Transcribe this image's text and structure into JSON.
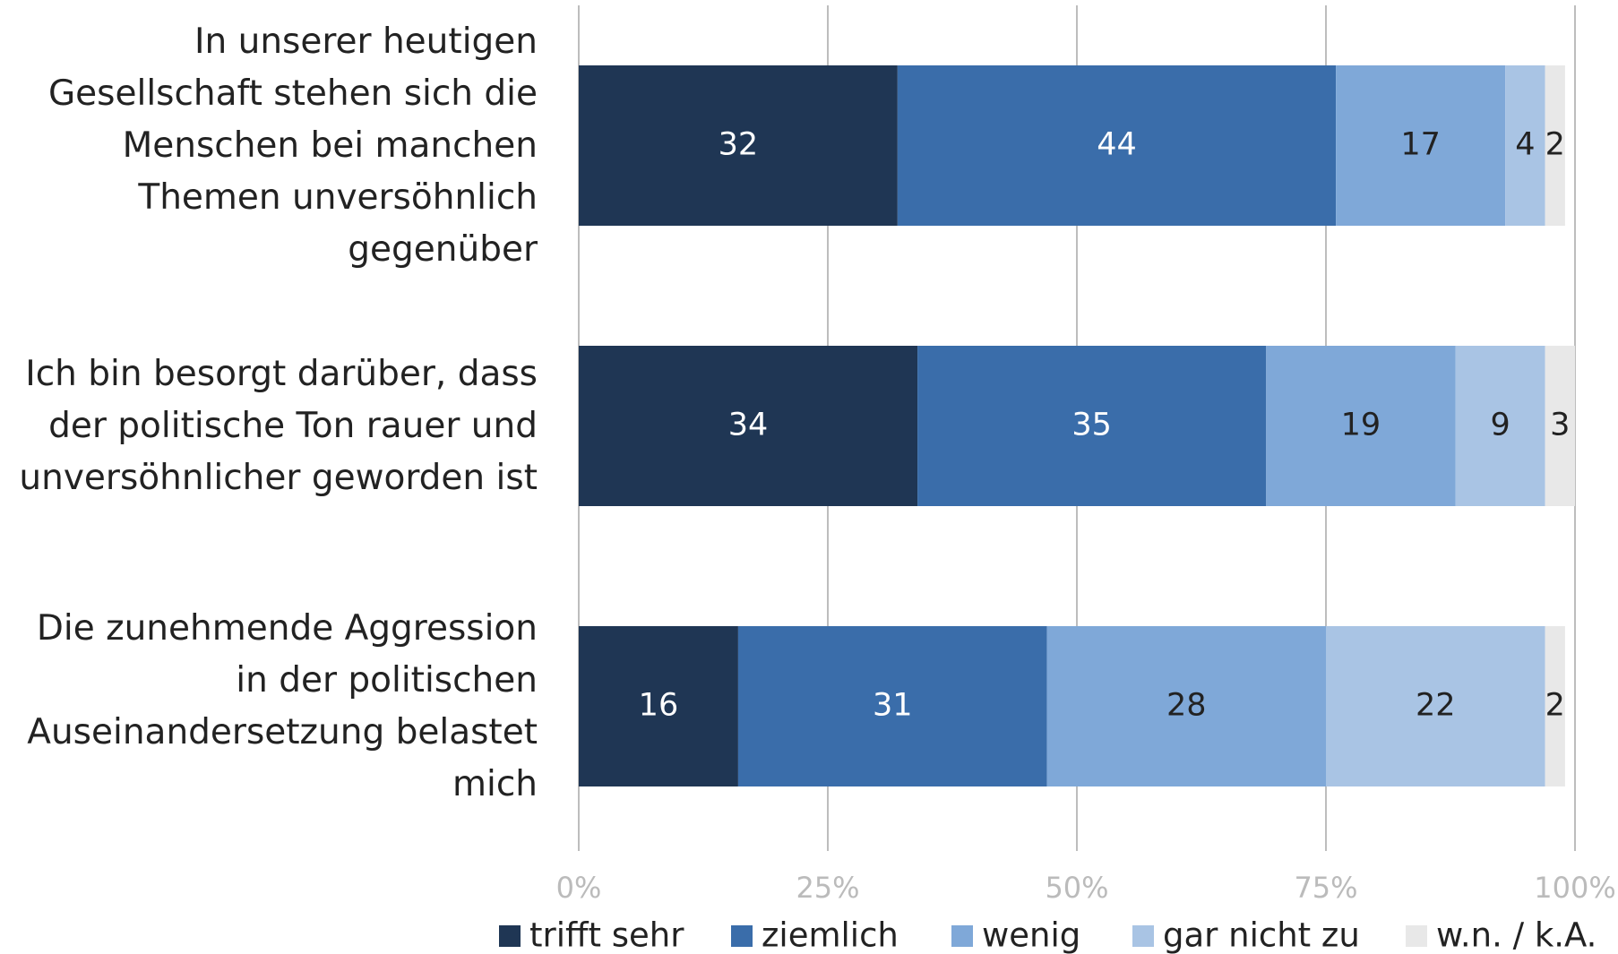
{
  "chart_data": {
    "type": "stacked-bar-horizontal",
    "categories": [
      "In unserer heutigen Gesellschaft stehen sich die Menschen bei manchen Themen unversöhnlich gegenüber",
      "Ich bin besorgt darüber, dass der politische Ton rauer und unversöhnlicher geworden ist",
      "Die zunehmende Aggression in der politischen Auseinandersetzung belastet mich"
    ],
    "series": [
      {
        "name": "trifft sehr",
        "color": "#1f3654",
        "values": [
          32,
          34,
          16
        ]
      },
      {
        "name": "ziemlich",
        "color": "#3a6daa",
        "values": [
          44,
          35,
          31
        ]
      },
      {
        "name": "wenig",
        "color": "#7fa8d8",
        "values": [
          17,
          19,
          28
        ]
      },
      {
        "name": "gar nicht zu",
        "color": "#a9c4e4",
        "values": [
          4,
          9,
          22
        ]
      },
      {
        "name": "w.n. / k.A.",
        "color": "#e8e8e8",
        "values": [
          2,
          3,
          2
        ]
      }
    ],
    "xlim": [
      0,
      100
    ],
    "xticks": [
      {
        "value": 0,
        "label": "0%"
      },
      {
        "value": 25,
        "label": "25%"
      },
      {
        "value": 50,
        "label": "50%"
      },
      {
        "value": 75,
        "label": "75%"
      },
      {
        "value": 100,
        "label": "100%"
      }
    ],
    "grid": true,
    "legend": "bottom"
  }
}
